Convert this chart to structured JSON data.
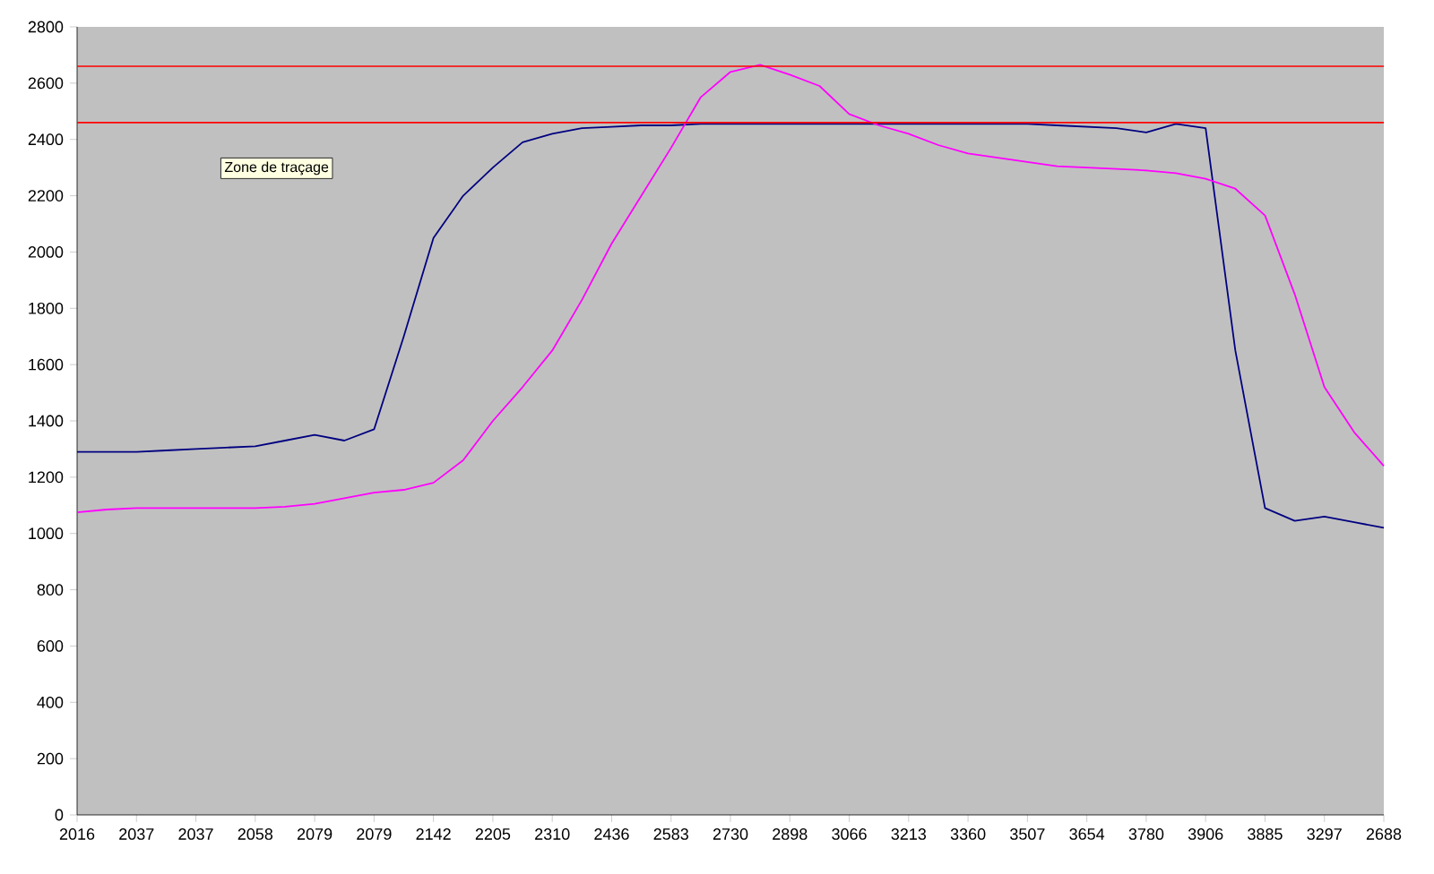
{
  "chart_data": {
    "type": "line",
    "categories": [
      "2016",
      null,
      "2037",
      null,
      "2037",
      null,
      "2058",
      null,
      "2079",
      null,
      "2079",
      null,
      "2142",
      null,
      "2205",
      null,
      "2310",
      null,
      "2436",
      null,
      "2583",
      null,
      "2730",
      null,
      "2898",
      null,
      "3066",
      null,
      "3213",
      null,
      "3360",
      null,
      "3507",
      null,
      "3654",
      null,
      "3780",
      null,
      "3906",
      null,
      "3885",
      null,
      "3297",
      null,
      "2688"
    ],
    "series": [
      {
        "color": "#000080",
        "values": [
          1290,
          1290,
          1290,
          1295,
          1300,
          1305,
          1310,
          1330,
          1350,
          1330,
          1370,
          1700,
          2050,
          2200,
          2300,
          2390,
          2420,
          2440,
          2445,
          2450,
          2450,
          2455,
          2455,
          2455,
          2455,
          2455,
          2455,
          2455,
          2455,
          2455,
          2455,
          2455,
          2455,
          2450,
          2445,
          2440,
          2425,
          2455,
          2440,
          1650,
          1090,
          1045,
          1060,
          1040,
          1020
        ]
      },
      {
        "color": "#ff00ff",
        "values": [
          1075,
          1085,
          1090,
          1090,
          1090,
          1090,
          1090,
          1095,
          1105,
          1125,
          1145,
          1155,
          1180,
          1260,
          1400,
          1520,
          1650,
          1830,
          2030,
          2200,
          2370,
          2550,
          2640,
          2665,
          2630,
          2590,
          2490,
          2450,
          2420,
          2380,
          2350,
          2335,
          2320,
          2305,
          2300,
          2295,
          2290,
          2280,
          2260,
          2225,
          2130,
          1850,
          1520,
          1360,
          1240
        ]
      }
    ],
    "ylim": [
      0,
      2800
    ],
    "yticks": [
      0,
      200,
      400,
      600,
      800,
      1000,
      1200,
      1400,
      1600,
      1800,
      2000,
      2200,
      2400,
      2600,
      2800
    ],
    "ref_lines": [
      {
        "axis": "y",
        "value": 2660,
        "color": "#ff0000"
      },
      {
        "axis": "y",
        "value": 2460,
        "color": "#ff0000"
      }
    ],
    "annotations": [
      "Zone de traçage"
    ]
  }
}
